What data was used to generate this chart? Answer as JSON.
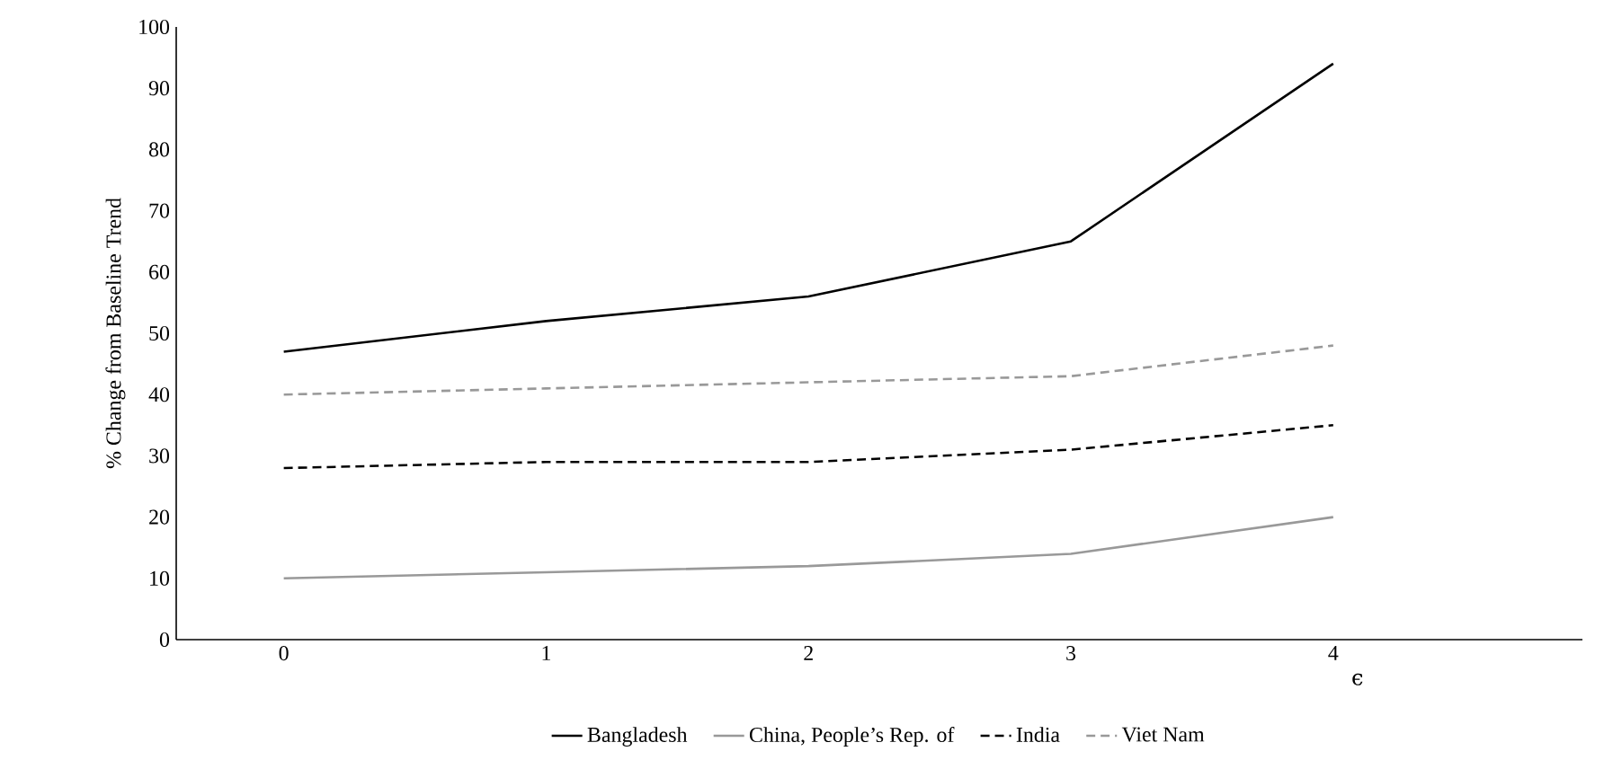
{
  "chart_data": {
    "type": "line",
    "xlabel": "ϵ",
    "ylabel": "% Change from Baseline Trend",
    "x": [
      0,
      1,
      2,
      3,
      4
    ],
    "xlim": [
      -0.41,
      4.95
    ],
    "xticks": [
      0,
      1,
      2,
      3,
      4
    ],
    "ylim": [
      0,
      100
    ],
    "yticks": [
      0,
      10,
      20,
      30,
      40,
      50,
      60,
      70,
      80,
      90,
      100
    ],
    "grid": false,
    "legend": "bottom",
    "marker": "none",
    "series": [
      {
        "name": "Bangladesh",
        "color": "#000000",
        "line_style": "solid",
        "values": [
          47,
          52,
          56,
          65,
          94
        ]
      },
      {
        "name": "China, People’s Rep. of",
        "color": "#999999",
        "line_style": "solid",
        "values": [
          10,
          11,
          12,
          14,
          20
        ]
      },
      {
        "name": "India",
        "color": "#000000",
        "line_style": "dashed",
        "values": [
          28,
          29,
          29,
          31,
          35
        ]
      },
      {
        "name": "Viet Nam",
        "color": "#999999",
        "line_style": "dashed",
        "values": [
          40,
          41,
          42,
          43,
          48
        ]
      }
    ]
  }
}
